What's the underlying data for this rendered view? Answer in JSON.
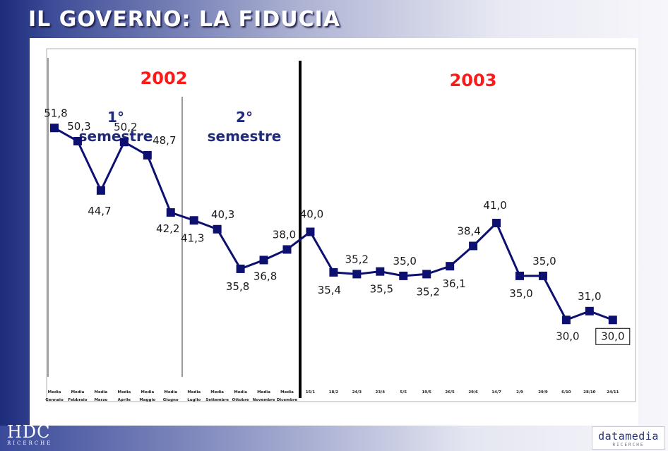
{
  "title": "IL GOVERNO: LA FIDUCIA",
  "colors": {
    "line": "#0d1070",
    "year_label": "#ff1a1a",
    "semester_label": "#1f2a7a",
    "value_label": "#1a1a1a"
  },
  "logos": {
    "left_main": "HDC",
    "left_sub": "RICERCHE",
    "right_main": "datamedia",
    "right_sub": "RICERCHE"
  },
  "chart_data": {
    "type": "line",
    "title": "",
    "xlabel": "",
    "ylabel": "",
    "categories": [
      "Media Gennaio",
      "Media Febbraio",
      "Media Marzo",
      "Media Aprile",
      "Media Maggio",
      "Media Giugno",
      "Media Luglio",
      "Media Settembre",
      "Media Ottobre",
      "Media Novembre",
      "Media Dicembre",
      "15/1",
      "18/2",
      "24/3",
      "23/4",
      "5/5",
      "19/5",
      "26/5",
      "29/6",
      "14/7",
      "2/9",
      "29/9",
      "6/10",
      "28/10",
      "24/11"
    ],
    "values": [
      51.8,
      50.3,
      44.7,
      50.2,
      48.7,
      42.2,
      41.3,
      40.3,
      35.8,
      36.8,
      38.0,
      40.0,
      35.4,
      35.2,
      35.5,
      35.0,
      35.2,
      36.1,
      38.4,
      41.0,
      35.0,
      35.0,
      30.0,
      31.0,
      30.0
    ],
    "value_labels": [
      "51,8",
      "50,3",
      "44,7",
      "50,2",
      "48,7",
      "42,2",
      "41,3",
      "40,3",
      "35,8",
      "36,8",
      "38,0",
      "40,0",
      "35,4",
      "35,2",
      "35,5",
      "35,0",
      "35,2",
      "36,1",
      "38,4",
      "41,0",
      "35,0",
      "35,0",
      "30,0",
      "31,0",
      "30,0"
    ],
    "ylim": [
      18,
      62
    ],
    "grid": false,
    "legend": "none",
    "annotations": {
      "year_2002": "2002",
      "year_2003": "2003",
      "semester_1": [
        "1°",
        "semestre"
      ],
      "semester_2": [
        "2°",
        "semestre"
      ]
    },
    "highlighted_label_index": 24
  }
}
